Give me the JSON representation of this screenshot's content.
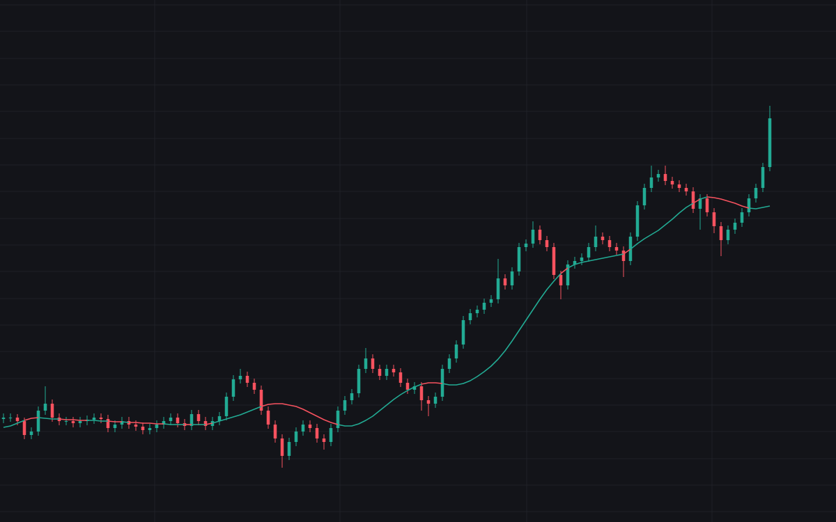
{
  "chart_data": {
    "type": "candlestick",
    "x": [
      0,
      1,
      2,
      3,
      4,
      5,
      6,
      7,
      8,
      9,
      10,
      11,
      12,
      13,
      14,
      15,
      16,
      17,
      18,
      19,
      20,
      21,
      22,
      23,
      24,
      25,
      26,
      27,
      28,
      29,
      30,
      31,
      32,
      33,
      34,
      35,
      36,
      37,
      38,
      39,
      40,
      41,
      42,
      43,
      44,
      45,
      46,
      47,
      48,
      49,
      50,
      51,
      52,
      53,
      54,
      55,
      56,
      57,
      58,
      59,
      60,
      61,
      62,
      63,
      64,
      65,
      66,
      67,
      68,
      69,
      70,
      71,
      72,
      73,
      74,
      75,
      76,
      77,
      78,
      79,
      80,
      81,
      82,
      83,
      84,
      85,
      86,
      87,
      88,
      89,
      90,
      91,
      92,
      93,
      94,
      95,
      96,
      97,
      98,
      99,
      100,
      101,
      102,
      103,
      104,
      105,
      106,
      107,
      108,
      109,
      110
    ],
    "open": [
      148,
      150,
      150,
      145,
      125,
      130,
      160,
      170,
      150,
      145,
      145,
      142,
      145,
      147,
      150,
      148,
      135,
      140,
      145,
      140,
      137,
      132,
      135,
      140,
      145,
      150,
      142,
      138,
      155,
      145,
      138,
      145,
      152,
      180,
      205,
      210,
      200,
      190,
      160,
      140,
      120,
      95,
      115,
      130,
      140,
      135,
      120,
      115,
      135,
      160,
      175,
      185,
      220,
      235,
      220,
      210,
      220,
      215,
      200,
      190,
      195,
      175,
      170,
      180,
      220,
      235,
      255,
      290,
      300,
      305,
      315,
      320,
      350,
      340,
      360,
      395,
      400,
      420,
      405,
      395,
      355,
      340,
      370,
      375,
      380,
      395,
      410,
      405,
      395,
      390,
      375,
      410,
      455,
      480,
      495,
      500,
      490,
      485,
      480,
      475,
      450,
      465,
      445,
      425,
      405,
      420,
      430,
      445,
      465,
      480,
      510
    ],
    "high": [
      156,
      156,
      155,
      150,
      136,
      166,
      195,
      176,
      156,
      151,
      151,
      151,
      153,
      156,
      156,
      154,
      146,
      151,
      151,
      146,
      143,
      141,
      146,
      151,
      156,
      156,
      148,
      161,
      161,
      151,
      151,
      158,
      186,
      211,
      220,
      216,
      206,
      196,
      166,
      146,
      126,
      121,
      136,
      146,
      146,
      141,
      126,
      141,
      166,
      181,
      191,
      226,
      250,
      241,
      226,
      226,
      226,
      221,
      206,
      201,
      201,
      181,
      186,
      226,
      241,
      261,
      296,
      306,
      311,
      321,
      326,
      378,
      356,
      366,
      401,
      406,
      432,
      426,
      411,
      401,
      361,
      376,
      381,
      386,
      401,
      426,
      416,
      411,
      401,
      396,
      416,
      461,
      486,
      512,
      506,
      512,
      496,
      491,
      486,
      481,
      471,
      471,
      451,
      431,
      426,
      436,
      451,
      471,
      486,
      516,
      598
    ],
    "low": [
      142,
      144,
      139,
      119,
      119,
      124,
      154,
      144,
      139,
      139,
      136,
      136,
      139,
      141,
      142,
      129,
      129,
      134,
      134,
      131,
      126,
      126,
      129,
      134,
      139,
      136,
      132,
      132,
      139,
      132,
      132,
      139,
      146,
      174,
      199,
      194,
      184,
      154,
      134,
      114,
      78,
      89,
      109,
      124,
      129,
      114,
      104,
      109,
      129,
      154,
      169,
      179,
      214,
      214,
      204,
      204,
      209,
      194,
      184,
      184,
      160,
      152,
      164,
      174,
      214,
      229,
      249,
      284,
      294,
      299,
      309,
      314,
      334,
      334,
      354,
      389,
      394,
      399,
      389,
      349,
      320,
      334,
      364,
      369,
      374,
      389,
      399,
      389,
      384,
      352,
      369,
      404,
      449,
      474,
      489,
      484,
      479,
      474,
      469,
      444,
      420,
      439,
      415,
      382,
      399,
      414,
      424,
      439,
      459,
      474,
      504
    ],
    "close": [
      150,
      150,
      145,
      125,
      130,
      160,
      170,
      150,
      145,
      145,
      142,
      145,
      147,
      150,
      148,
      135,
      140,
      145,
      140,
      137,
      132,
      135,
      140,
      145,
      150,
      142,
      138,
      155,
      145,
      138,
      145,
      152,
      180,
      205,
      210,
      200,
      190,
      160,
      140,
      120,
      95,
      115,
      130,
      140,
      135,
      120,
      115,
      135,
      160,
      175,
      185,
      220,
      235,
      220,
      210,
      220,
      215,
      200,
      190,
      195,
      175,
      170,
      180,
      220,
      235,
      255,
      290,
      300,
      305,
      315,
      320,
      350,
      340,
      360,
      395,
      400,
      420,
      405,
      395,
      355,
      340,
      370,
      375,
      380,
      395,
      410,
      405,
      395,
      390,
      375,
      410,
      455,
      480,
      495,
      500,
      490,
      485,
      480,
      475,
      450,
      465,
      445,
      425,
      405,
      420,
      430,
      445,
      465,
      480,
      510,
      580
    ],
    "up_color": "#22ab94",
    "down_color": "#f7525f",
    "moving_average": {
      "values": [
        136,
        138,
        142,
        146,
        149,
        150,
        149,
        148,
        148,
        147,
        147,
        146,
        146,
        146,
        145,
        145,
        144,
        144,
        143,
        143,
        142,
        142,
        141,
        141,
        140,
        140,
        140,
        140,
        140,
        140,
        142,
        145,
        148,
        151,
        154,
        158,
        162,
        166,
        169,
        170,
        170,
        168,
        166,
        162,
        157,
        152,
        147,
        143,
        140,
        138,
        138,
        141,
        146,
        152,
        160,
        168,
        176,
        183,
        189,
        194,
        198,
        200,
        200,
        199,
        197,
        197,
        199,
        203,
        209,
        216,
        224,
        234,
        246,
        260,
        275,
        290,
        305,
        320,
        334,
        346,
        357,
        365,
        370,
        373,
        375,
        377,
        379,
        381,
        383,
        385,
        392,
        400,
        407,
        413,
        419,
        427,
        435,
        444,
        452,
        458,
        464,
        467,
        466,
        464,
        461,
        458,
        454,
        451,
        450,
        452,
        454
      ]
    },
    "xlim": [
      -0.5,
      119.5
    ],
    "ylim": [
      0,
      750
    ],
    "xticks": [
      21.7,
      48.3,
      75.1,
      101.7
    ],
    "yticks": [
      15,
      53,
      91,
      130,
      168,
      206,
      245,
      283,
      321,
      360,
      398,
      436,
      475,
      513,
      551,
      590,
      628,
      666,
      705,
      743
    ],
    "grid": true
  }
}
